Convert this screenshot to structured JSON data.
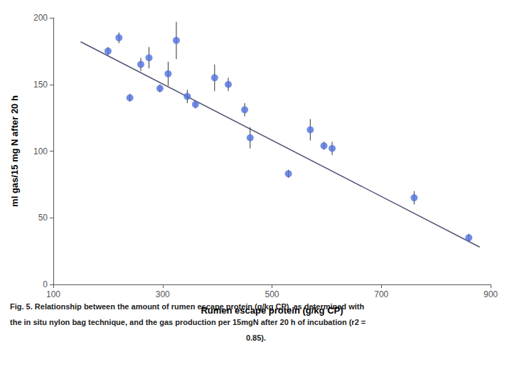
{
  "chart_data": {
    "type": "scatter",
    "xlabel": "Rumen escape protein (g/kg CP)",
    "ylabel": "ml gas/15 mg N after 20 h",
    "series": [
      {
        "type": "scatter",
        "marker": "circle",
        "x": [
          200,
          220,
          240,
          260,
          275,
          295,
          310,
          325,
          345,
          360,
          395,
          420,
          450,
          460,
          530,
          570,
          595,
          610,
          760,
          860
        ],
        "values": [
          175,
          185,
          140,
          165,
          170,
          147,
          158,
          183,
          141,
          135,
          155,
          150,
          131,
          110,
          83,
          116,
          104,
          102,
          65,
          35
        ],
        "yerr": [
          3,
          4,
          3,
          5,
          8,
          3,
          9,
          14,
          5,
          3,
          10,
          5,
          5,
          8,
          3,
          8,
          3,
          5,
          5,
          3
        ]
      },
      {
        "type": "line",
        "line_style": "solid",
        "x": [
          150,
          880
        ],
        "values": [
          182,
          28
        ]
      }
    ],
    "xlim": [
      100,
      900
    ],
    "ylim": [
      0,
      200
    ],
    "xticks": [
      100,
      300,
      500,
      700,
      900
    ],
    "yticks": [
      0,
      50,
      100,
      150,
      200
    ],
    "grid": false,
    "annotations": [
      "Fig. 5. Relationship between the amount of rumen escape protein (g/kg CP), as determined with",
      "the in situ nylon bag technique, and the gas production per 15mgN after 20 h of incubation (r2 =",
      "0.85)."
    ]
  }
}
